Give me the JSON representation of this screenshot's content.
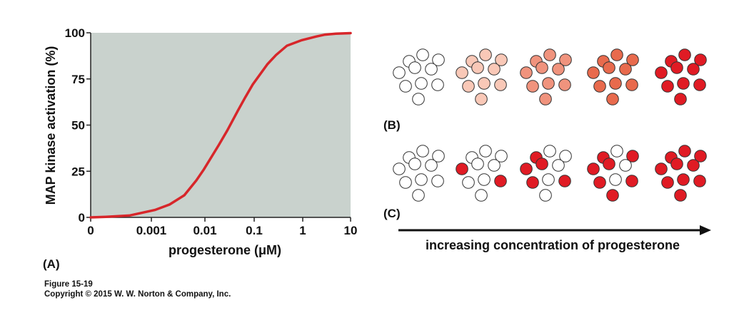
{
  "chart_data": {
    "type": "line",
    "panel_label": "(A)",
    "xlabel": "progesterone (μM)",
    "ylabel": "MAP kinase activation (%)",
    "xticks": [
      "0",
      "0.001",
      "0.01",
      "0.1",
      "1",
      "10"
    ],
    "yticks": [
      "0",
      "25",
      "50",
      "75",
      "100"
    ],
    "ylim": [
      0,
      100
    ],
    "xscale": "log (0 at left edge)",
    "series": [
      {
        "name": "MAP kinase activation",
        "color": "#d7262a",
        "x": [
          0,
          0.0001,
          0.0003,
          0.001,
          0.002,
          0.004,
          0.007,
          0.01,
          0.02,
          0.03,
          0.05,
          0.07,
          0.1,
          0.2,
          0.3,
          0.5,
          1,
          2,
          3,
          5,
          10
        ],
        "y": [
          0,
          0.3,
          1,
          4,
          7,
          12,
          20,
          26,
          39,
          47,
          58,
          65,
          72,
          83,
          88,
          93,
          96,
          98,
          99,
          99.5,
          99.8
        ]
      }
    ]
  },
  "panels": {
    "b_label": "(B)",
    "c_label": "(C)",
    "arrow_label": "increasing concentration of progesterone",
    "b_fill_colors": [
      "#ffffff",
      "#f9c8b7",
      "#f0937d",
      "#e86a4d",
      "#e01b24"
    ],
    "c_red_counts": [
      0,
      2,
      5,
      7,
      10
    ],
    "active_color": "#e01b24",
    "inactive_color": "#ffffff",
    "outline_color": "#333333",
    "oocytes_per_group": 10
  },
  "figure": {
    "number": "Figure 15-19",
    "copyright": "Copyright © 2015 W. W. Norton & Company, Inc."
  },
  "colors": {
    "plot_background": "#c9d2cd",
    "axis": "#222222"
  }
}
